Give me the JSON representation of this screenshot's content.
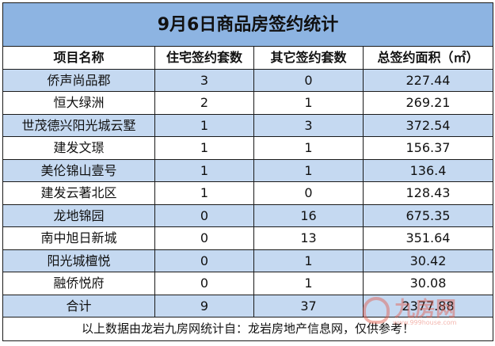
{
  "title": "9月6日商品房签约统计",
  "headers": [
    "项目名称",
    "住宅签约套数",
    "其它签约套数",
    "总签约面积（㎡）"
  ],
  "rows": [
    [
      "侨声尚品郡",
      "3",
      "0",
      "227.44"
    ],
    [
      "恒大绿洲",
      "2",
      "1",
      "269.21"
    ],
    [
      "世茂德兴阳光城云墅",
      "1",
      "3",
      "372.54"
    ],
    [
      "建发文璟",
      "1",
      "1",
      "156.37"
    ],
    [
      "美伦锦山壹号",
      "1",
      "1",
      "136.4"
    ],
    [
      "建发云著北区",
      "1",
      "0",
      "128.43"
    ],
    [
      "龙地锦园",
      "0",
      "16",
      "675.35"
    ],
    [
      "南中旭日新城",
      "0",
      "13",
      "351.64"
    ],
    [
      "阳光城檀悦",
      "0",
      "1",
      "30.42"
    ],
    [
      "融侨悦府",
      "0",
      "1",
      "30.08"
    ]
  ],
  "total": [
    "合计",
    "9",
    "37",
    "2377.88"
  ],
  "footer": "以上数据由龙岩九房网统计自：龙岩房地产信息网，仅供参考！",
  "watermark": {
    "text": "九房网",
    "url": "www.999house.com"
  },
  "colors": {
    "title_bg": "#8db4e2",
    "stripe": "#c5d9f1"
  }
}
